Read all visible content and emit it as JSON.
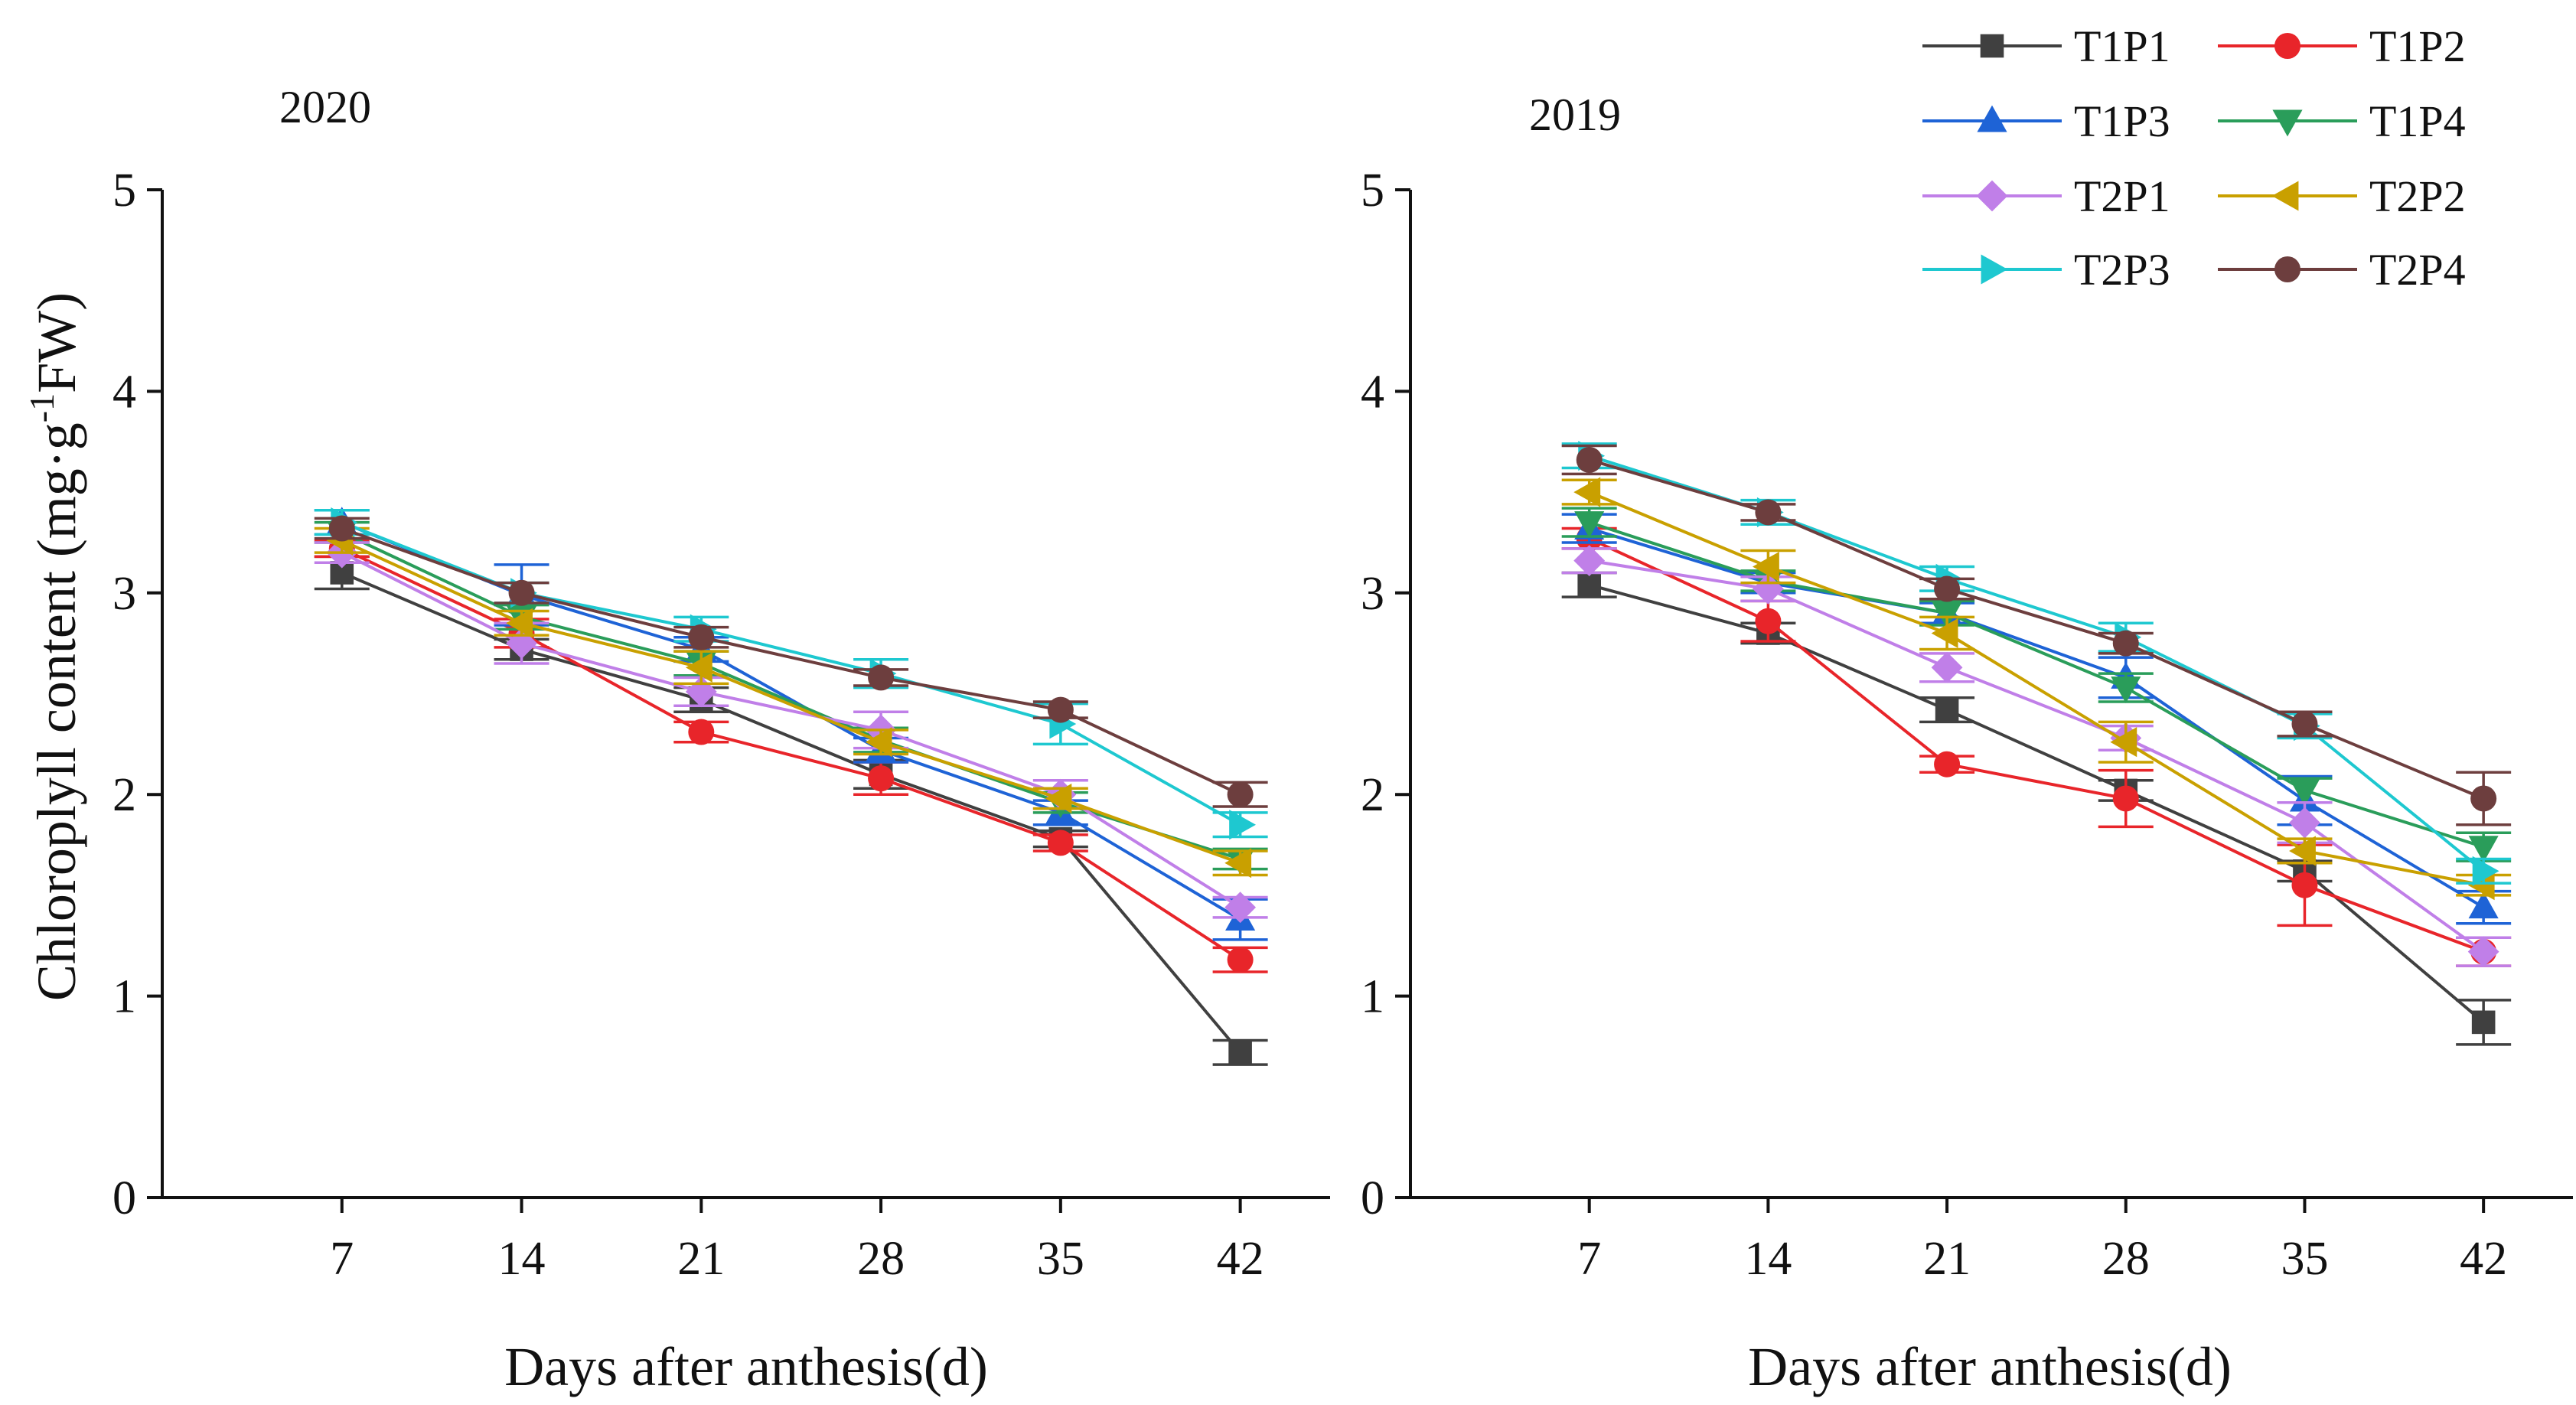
{
  "chart_data": [
    {
      "type": "line",
      "title": "2020",
      "xlabel": "Days after anthesis(d)",
      "ylabel_main": "Chloroplyll content (mg·g",
      "ylabel_sup": "-1",
      "ylabel_end": "FW)",
      "x": [
        7,
        14,
        21,
        28,
        35,
        42
      ],
      "xlim": [
        0,
        45.5
      ],
      "ylim": [
        0,
        5
      ],
      "yticks": [
        0,
        1,
        2,
        3,
        4,
        5
      ],
      "series": [
        {
          "name": "T1P1",
          "values": [
            3.1,
            2.72,
            2.47,
            2.1,
            1.78,
            0.72
          ],
          "errors": [
            0.08,
            0.05,
            0.06,
            0.07,
            0.04,
            0.06
          ],
          "color": "#404040",
          "marker": "square"
        },
        {
          "name": "T1P2",
          "values": [
            3.22,
            2.8,
            2.31,
            2.08,
            1.76,
            1.18
          ],
          "errors": [
            0.04,
            0.07,
            0.05,
            0.08,
            0.04,
            0.06
          ],
          "color": "#e8252a",
          "marker": "circle"
        },
        {
          "name": "T1P3",
          "values": [
            3.35,
            2.99,
            2.72,
            2.22,
            1.91,
            1.38
          ],
          "errors": [
            0.06,
            0.15,
            0.06,
            0.06,
            0.06,
            0.1
          ],
          "color": "#1e63d6",
          "marker": "triangle-up"
        },
        {
          "name": "T1P4",
          "values": [
            3.3,
            2.88,
            2.65,
            2.27,
            1.96,
            1.68
          ],
          "errors": [
            0.05,
            0.06,
            0.06,
            0.06,
            0.05,
            0.05
          ],
          "color": "#2a9d5a",
          "marker": "triangle-down"
        },
        {
          "name": "T2P1",
          "values": [
            3.2,
            2.75,
            2.51,
            2.32,
            2.0,
            1.44
          ],
          "errors": [
            0.05,
            0.1,
            0.07,
            0.09,
            0.07,
            0.05
          ],
          "color": "#c07fe8",
          "marker": "diamond"
        },
        {
          "name": "T2P2",
          "values": [
            3.26,
            2.85,
            2.63,
            2.26,
            1.98,
            1.66
          ],
          "errors": [
            0.06,
            0.06,
            0.08,
            0.06,
            0.05,
            0.06
          ],
          "color": "#c9a000",
          "marker": "triangle-left"
        },
        {
          "name": "T2P3",
          "values": [
            3.35,
            3.0,
            2.82,
            2.6,
            2.35,
            1.85
          ],
          "errors": [
            0.06,
            0.05,
            0.06,
            0.07,
            0.1,
            0.06
          ],
          "color": "#1ec8d0",
          "marker": "triangle-right"
        },
        {
          "name": "T2P4",
          "values": [
            3.32,
            3.0,
            2.78,
            2.58,
            2.42,
            2.0
          ],
          "errors": [
            0.05,
            0.05,
            0.05,
            0.04,
            0.04,
            0.06
          ],
          "color": "#6d3e3e",
          "marker": "circle"
        }
      ]
    },
    {
      "type": "line",
      "title": "2019",
      "xlabel": "Days after anthesis(d)",
      "x": [
        7,
        14,
        21,
        28,
        35,
        42
      ],
      "xlim": [
        0,
        45.5
      ],
      "ylim": [
        0,
        5
      ],
      "yticks": [
        0,
        1,
        2,
        3,
        4,
        5
      ],
      "series": [
        {
          "name": "T1P1",
          "values": [
            3.04,
            2.8,
            2.42,
            2.02,
            1.62,
            0.87
          ],
          "errors": [
            0.06,
            0.05,
            0.06,
            0.05,
            0.05,
            0.11
          ],
          "color": "#404040",
          "marker": "square"
        },
        {
          "name": "T1P2",
          "values": [
            3.27,
            2.86,
            2.15,
            1.98,
            1.55,
            1.22
          ],
          "errors": [
            0.05,
            0.1,
            0.04,
            0.14,
            0.2,
            0.07
          ],
          "color": "#e8252a",
          "marker": "circle"
        },
        {
          "name": "T1P3",
          "values": [
            3.32,
            3.05,
            2.9,
            2.58,
            1.97,
            1.44
          ],
          "errors": [
            0.07,
            0.05,
            0.05,
            0.1,
            0.12,
            0.08
          ],
          "color": "#1e63d6",
          "marker": "triangle-up"
        },
        {
          "name": "T1P4",
          "values": [
            3.35,
            3.06,
            2.9,
            2.53,
            2.02,
            1.74
          ],
          "errors": [
            0.07,
            0.05,
            0.06,
            0.07,
            0.06,
            0.07
          ],
          "color": "#2a9d5a",
          "marker": "triangle-down"
        },
        {
          "name": "T2P1",
          "values": [
            3.16,
            3.02,
            2.63,
            2.28,
            1.86,
            1.22
          ],
          "errors": [
            0.06,
            0.06,
            0.07,
            0.06,
            0.1,
            0.07
          ],
          "color": "#c07fe8",
          "marker": "diamond"
        },
        {
          "name": "T2P2",
          "values": [
            3.5,
            3.13,
            2.8,
            2.26,
            1.72,
            1.55
          ],
          "errors": [
            0.06,
            0.08,
            0.08,
            0.1,
            0.06,
            0.05
          ],
          "color": "#c9a000",
          "marker": "triangle-left"
        },
        {
          "name": "T2P3",
          "values": [
            3.68,
            3.4,
            3.07,
            2.78,
            2.34,
            1.62
          ],
          "errors": [
            0.06,
            0.06,
            0.06,
            0.07,
            0.06,
            0.06
          ],
          "color": "#1ec8d0",
          "marker": "triangle-right"
        },
        {
          "name": "T2P4",
          "values": [
            3.66,
            3.4,
            3.02,
            2.75,
            2.35,
            1.98
          ],
          "errors": [
            0.07,
            0.04,
            0.05,
            0.05,
            0.06,
            0.13
          ],
          "color": "#6d3e3e",
          "marker": "circle"
        }
      ]
    }
  ],
  "legend": {
    "position": "top-right",
    "entries": [
      "T1P1",
      "T1P2",
      "T1P3",
      "T1P4",
      "T2P1",
      "T2P2",
      "T2P3",
      "T2P4"
    ]
  }
}
